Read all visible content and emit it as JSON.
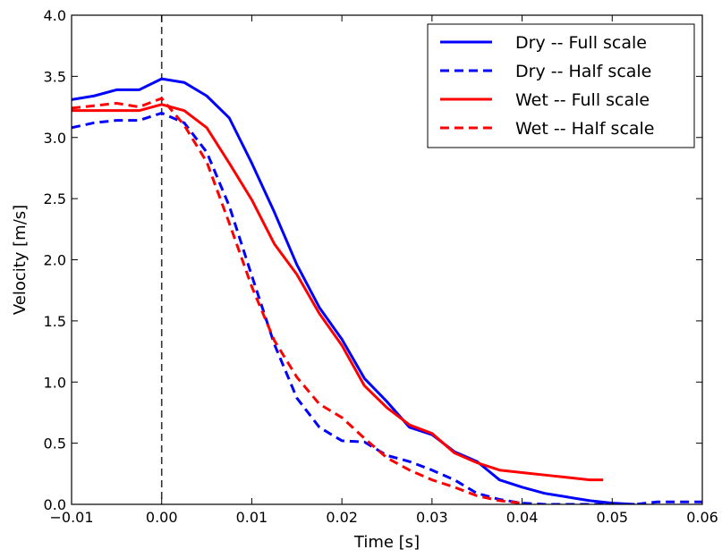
{
  "chart_data": {
    "type": "line",
    "title": "",
    "xlabel": "Time [s]",
    "ylabel": "Velocity [m/s]",
    "xlim": [
      -0.01,
      0.06
    ],
    "ylim": [
      0.0,
      4.0
    ],
    "xticks": [
      -0.01,
      0.0,
      0.01,
      0.02,
      0.03,
      0.04,
      0.05,
      0.06
    ],
    "xtick_labels": [
      "−0.01",
      "0.00",
      "0.01",
      "0.02",
      "0.03",
      "0.04",
      "0.05",
      "0.06"
    ],
    "yticks": [
      0.0,
      0.5,
      1.0,
      1.5,
      2.0,
      2.5,
      3.0,
      3.5,
      4.0
    ],
    "ytick_labels": [
      "0.0",
      "0.5",
      "1.0",
      "1.5",
      "2.0",
      "2.5",
      "3.0",
      "3.5",
      "4.0"
    ],
    "grid": false,
    "legend_position": "top-right",
    "vline": {
      "x": 0.0,
      "style": "dashed",
      "color": "#333333"
    },
    "series": [
      {
        "name": "Dry -- Full scale",
        "color": "#0000ff",
        "linestyle": "solid",
        "x": [
          -0.01,
          -0.0075,
          -0.005,
          -0.0025,
          0.0,
          0.0025,
          0.005,
          0.0075,
          0.01,
          0.0125,
          0.015,
          0.0175,
          0.02,
          0.0225,
          0.025,
          0.0275,
          0.03,
          0.0325,
          0.035,
          0.0375,
          0.04,
          0.0425,
          0.045,
          0.0475,
          0.05,
          0.0525
        ],
        "y": [
          3.31,
          3.34,
          3.39,
          3.39,
          3.48,
          3.45,
          3.34,
          3.16,
          2.79,
          2.39,
          1.96,
          1.61,
          1.35,
          1.03,
          0.84,
          0.63,
          0.57,
          0.43,
          0.35,
          0.2,
          0.14,
          0.09,
          0.06,
          0.03,
          0.01,
          0.0
        ]
      },
      {
        "name": "Dry -- Half scale",
        "color": "#0000ff",
        "linestyle": "dashed",
        "x": [
          -0.01,
          -0.0075,
          -0.005,
          -0.0025,
          0.0,
          0.0025,
          0.005,
          0.0075,
          0.01,
          0.0125,
          0.015,
          0.0175,
          0.02,
          0.0225,
          0.025,
          0.0275,
          0.03,
          0.0325,
          0.035,
          0.0375,
          0.04,
          0.0425,
          0.045,
          0.0475,
          0.05,
          0.0525,
          0.055,
          0.06
        ],
        "y": [
          3.08,
          3.12,
          3.14,
          3.14,
          3.2,
          3.12,
          2.88,
          2.44,
          1.87,
          1.31,
          0.87,
          0.63,
          0.52,
          0.51,
          0.4,
          0.35,
          0.28,
          0.2,
          0.09,
          0.04,
          0.01,
          0.0,
          0.0,
          0.0,
          0.0,
          0.0,
          0.02,
          0.02
        ]
      },
      {
        "name": "Wet -- Full scale",
        "color": "#ff0000",
        "linestyle": "solid",
        "x": [
          -0.01,
          -0.0075,
          -0.005,
          -0.0025,
          0.0,
          0.0025,
          0.005,
          0.0075,
          0.01,
          0.0125,
          0.015,
          0.0175,
          0.02,
          0.0225,
          0.025,
          0.0275,
          0.03,
          0.0325,
          0.035,
          0.0375,
          0.04,
          0.0425,
          0.045,
          0.0475,
          0.049
        ],
        "y": [
          3.22,
          3.22,
          3.22,
          3.22,
          3.27,
          3.22,
          3.08,
          2.79,
          2.49,
          2.13,
          1.88,
          1.56,
          1.3,
          0.97,
          0.79,
          0.65,
          0.58,
          0.42,
          0.34,
          0.28,
          0.26,
          0.24,
          0.22,
          0.2,
          0.2
        ]
      },
      {
        "name": "Wet -- Half scale",
        "color": "#ff0000",
        "linestyle": "dashed",
        "x": [
          -0.01,
          -0.0075,
          -0.005,
          -0.0025,
          0.0,
          0.0025,
          0.005,
          0.0075,
          0.01,
          0.0125,
          0.015,
          0.0175,
          0.02,
          0.0225,
          0.025,
          0.0275,
          0.03,
          0.0325,
          0.035,
          0.0375,
          0.04
        ],
        "y": [
          3.24,
          3.26,
          3.28,
          3.25,
          3.32,
          3.1,
          2.8,
          2.3,
          1.78,
          1.34,
          1.04,
          0.82,
          0.71,
          0.54,
          0.38,
          0.28,
          0.2,
          0.14,
          0.07,
          0.03,
          0.01
        ]
      }
    ]
  }
}
